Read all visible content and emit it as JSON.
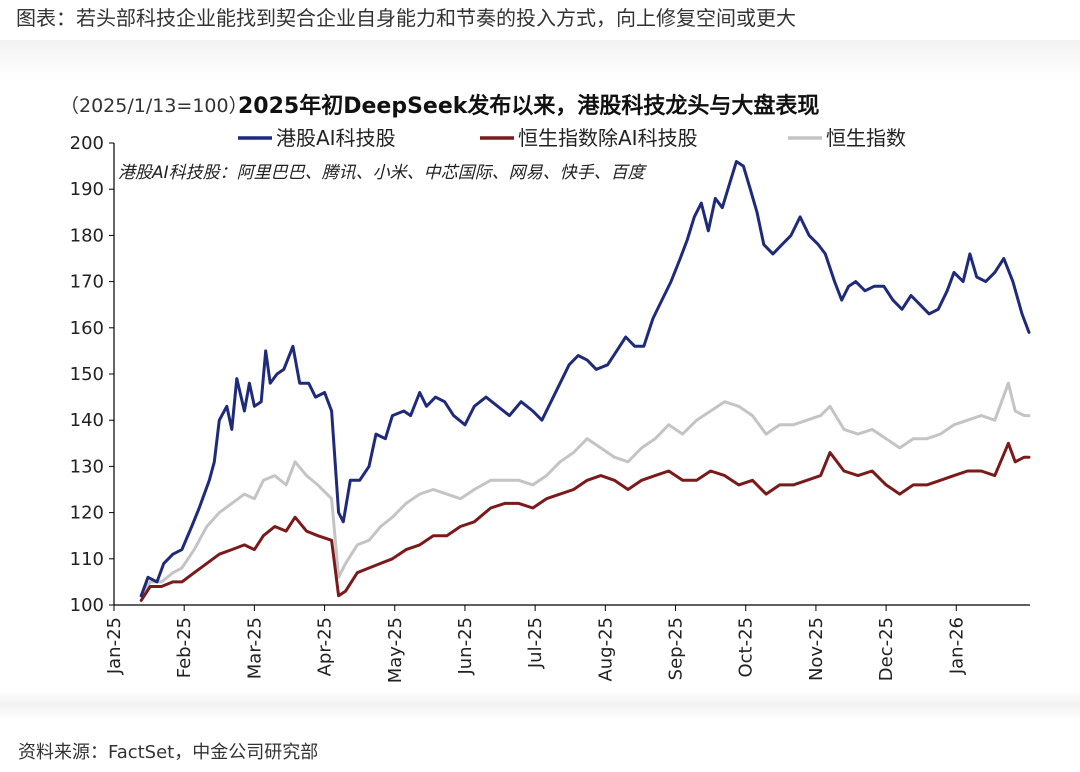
{
  "header": {
    "text": "图表：若头部科技企业能找到契合企业自身能力和节奏的投入方式，向上修复空间或更大"
  },
  "source": {
    "text": "资料来源：FactSet，中金公司研究部"
  },
  "chart_data": {
    "type": "line",
    "title_prefix": "（2025/1/13=100）",
    "title": "2025年初DeepSeek发布以来，港股科技龙头与大盘表现",
    "note": "港股AI科技股：阿里巴巴、腾讯、小米、中芯国际、网易、快手、百度",
    "ylim": [
      100,
      200
    ],
    "yticks": [
      100,
      110,
      120,
      130,
      140,
      150,
      160,
      170,
      180,
      190,
      200
    ],
    "xticks": [
      "Jan-25",
      "Feb-25",
      "Mar-25",
      "Apr-25",
      "May-25",
      "Jun-25",
      "Jul-25",
      "Aug-25",
      "Sep-25",
      "Oct-25",
      "Nov-25",
      "Dec-25",
      "Jan-26"
    ],
    "x_month_start": [
      2025,
      1
    ],
    "x_month_end": [
      2026,
      2.05
    ],
    "grid": false,
    "legend_position": "top",
    "series": [
      {
        "name": "港股AI科技股",
        "color": "#1f2a7a",
        "points": [
          [
            "2025-01-13",
            102
          ],
          [
            "2025-01-16",
            106
          ],
          [
            "2025-01-20",
            105
          ],
          [
            "2025-01-23",
            109
          ],
          [
            "2025-01-27",
            111
          ],
          [
            "2025-01-31",
            112
          ],
          [
            "2025-02-04",
            117
          ],
          [
            "2025-02-07",
            121
          ],
          [
            "2025-02-11",
            127
          ],
          [
            "2025-02-13",
            131
          ],
          [
            "2025-02-15",
            140
          ],
          [
            "2025-02-18",
            143
          ],
          [
            "2025-02-20",
            138
          ],
          [
            "2025-02-22",
            149
          ],
          [
            "2025-02-25",
            142
          ],
          [
            "2025-02-27",
            148
          ],
          [
            "2025-03-01",
            143
          ],
          [
            "2025-03-04",
            144
          ],
          [
            "2025-03-06",
            155
          ],
          [
            "2025-03-08",
            148
          ],
          [
            "2025-03-11",
            150
          ],
          [
            "2025-03-14",
            151
          ],
          [
            "2025-03-18",
            156
          ],
          [
            "2025-03-21",
            148
          ],
          [
            "2025-03-25",
            148
          ],
          [
            "2025-03-28",
            145
          ],
          [
            "2025-04-01",
            146
          ],
          [
            "2025-04-04",
            142
          ],
          [
            "2025-04-07",
            120
          ],
          [
            "2025-04-09",
            118
          ],
          [
            "2025-04-12",
            127
          ],
          [
            "2025-04-16",
            127
          ],
          [
            "2025-04-20",
            130
          ],
          [
            "2025-04-23",
            137
          ],
          [
            "2025-04-27",
            136
          ],
          [
            "2025-04-30",
            141
          ],
          [
            "2025-05-05",
            142
          ],
          [
            "2025-05-08",
            141
          ],
          [
            "2025-05-12",
            146
          ],
          [
            "2025-05-15",
            143
          ],
          [
            "2025-05-19",
            145
          ],
          [
            "2025-05-23",
            144
          ],
          [
            "2025-05-27",
            141
          ],
          [
            "2025-06-01",
            139
          ],
          [
            "2025-06-05",
            143
          ],
          [
            "2025-06-10",
            145
          ],
          [
            "2025-06-15",
            143
          ],
          [
            "2025-06-20",
            141
          ],
          [
            "2025-06-25",
            144
          ],
          [
            "2025-06-30",
            142
          ],
          [
            "2025-07-04",
            140
          ],
          [
            "2025-07-08",
            144
          ],
          [
            "2025-07-12",
            148
          ],
          [
            "2025-07-16",
            152
          ],
          [
            "2025-07-20",
            154
          ],
          [
            "2025-07-24",
            153
          ],
          [
            "2025-07-28",
            151
          ],
          [
            "2025-08-02",
            152
          ],
          [
            "2025-08-06",
            155
          ],
          [
            "2025-08-10",
            158
          ],
          [
            "2025-08-14",
            156
          ],
          [
            "2025-08-18",
            156
          ],
          [
            "2025-08-22",
            162
          ],
          [
            "2025-08-26",
            166
          ],
          [
            "2025-08-30",
            170
          ],
          [
            "2025-09-03",
            175
          ],
          [
            "2025-09-06",
            179
          ],
          [
            "2025-09-09",
            184
          ],
          [
            "2025-09-12",
            187
          ],
          [
            "2025-09-15",
            181
          ],
          [
            "2025-09-18",
            188
          ],
          [
            "2025-09-21",
            186
          ],
          [
            "2025-09-24",
            191
          ],
          [
            "2025-09-27",
            196
          ],
          [
            "2025-09-30",
            195
          ],
          [
            "2025-10-03",
            190
          ],
          [
            "2025-10-06",
            185
          ],
          [
            "2025-10-09",
            178
          ],
          [
            "2025-10-13",
            176
          ],
          [
            "2025-10-17",
            178
          ],
          [
            "2025-10-21",
            180
          ],
          [
            "2025-10-25",
            184
          ],
          [
            "2025-10-29",
            180
          ],
          [
            "2025-11-02",
            178
          ],
          [
            "2025-11-05",
            176
          ],
          [
            "2025-11-09",
            170
          ],
          [
            "2025-11-12",
            166
          ],
          [
            "2025-11-15",
            169
          ],
          [
            "2025-11-18",
            170
          ],
          [
            "2025-11-22",
            168
          ],
          [
            "2025-11-26",
            169
          ],
          [
            "2025-11-30",
            169
          ],
          [
            "2025-12-04",
            166
          ],
          [
            "2025-12-08",
            164
          ],
          [
            "2025-12-12",
            167
          ],
          [
            "2025-12-16",
            165
          ],
          [
            "2025-12-20",
            163
          ],
          [
            "2025-12-24",
            164
          ],
          [
            "2025-12-28",
            168
          ],
          [
            "2025-12-31",
            172
          ],
          [
            "2026-01-04",
            170
          ],
          [
            "2026-01-07",
            176
          ],
          [
            "2026-01-10",
            171
          ],
          [
            "2026-01-14",
            170
          ],
          [
            "2026-01-18",
            172
          ],
          [
            "2026-01-22",
            175
          ],
          [
            "2026-01-26",
            170
          ],
          [
            "2026-01-30",
            163
          ],
          [
            "2026-02-02",
            159
          ]
        ]
      },
      {
        "name": "恒生指数除AI科技股",
        "color": "#7a1a1a",
        "points": [
          [
            "2025-01-13",
            101
          ],
          [
            "2025-01-17",
            104
          ],
          [
            "2025-01-22",
            104
          ],
          [
            "2025-01-27",
            105
          ],
          [
            "2025-01-31",
            105
          ],
          [
            "2025-02-05",
            107
          ],
          [
            "2025-02-10",
            109
          ],
          [
            "2025-02-15",
            111
          ],
          [
            "2025-02-20",
            112
          ],
          [
            "2025-02-25",
            113
          ],
          [
            "2025-03-01",
            112
          ],
          [
            "2025-03-05",
            115
          ],
          [
            "2025-03-10",
            117
          ],
          [
            "2025-03-15",
            116
          ],
          [
            "2025-03-19",
            119
          ],
          [
            "2025-03-24",
            116
          ],
          [
            "2025-03-29",
            115
          ],
          [
            "2025-04-04",
            114
          ],
          [
            "2025-04-07",
            102
          ],
          [
            "2025-04-10",
            103
          ],
          [
            "2025-04-15",
            107
          ],
          [
            "2025-04-20",
            108
          ],
          [
            "2025-04-25",
            109
          ],
          [
            "2025-04-30",
            110
          ],
          [
            "2025-05-06",
            112
          ],
          [
            "2025-05-12",
            113
          ],
          [
            "2025-05-18",
            115
          ],
          [
            "2025-05-24",
            115
          ],
          [
            "2025-05-30",
            117
          ],
          [
            "2025-06-05",
            118
          ],
          [
            "2025-06-12",
            121
          ],
          [
            "2025-06-18",
            122
          ],
          [
            "2025-06-24",
            122
          ],
          [
            "2025-06-30",
            121
          ],
          [
            "2025-07-06",
            123
          ],
          [
            "2025-07-12",
            124
          ],
          [
            "2025-07-18",
            125
          ],
          [
            "2025-07-24",
            127
          ],
          [
            "2025-07-30",
            128
          ],
          [
            "2025-08-05",
            127
          ],
          [
            "2025-08-11",
            125
          ],
          [
            "2025-08-17",
            127
          ],
          [
            "2025-08-23",
            128
          ],
          [
            "2025-08-29",
            129
          ],
          [
            "2025-09-04",
            127
          ],
          [
            "2025-09-10",
            127
          ],
          [
            "2025-09-16",
            129
          ],
          [
            "2025-09-22",
            128
          ],
          [
            "2025-09-28",
            126
          ],
          [
            "2025-10-04",
            127
          ],
          [
            "2025-10-10",
            124
          ],
          [
            "2025-10-16",
            126
          ],
          [
            "2025-10-22",
            126
          ],
          [
            "2025-10-28",
            127
          ],
          [
            "2025-11-03",
            128
          ],
          [
            "2025-11-07",
            133
          ],
          [
            "2025-11-13",
            129
          ],
          [
            "2025-11-19",
            128
          ],
          [
            "2025-11-25",
            129
          ],
          [
            "2025-12-01",
            126
          ],
          [
            "2025-12-07",
            124
          ],
          [
            "2025-12-13",
            126
          ],
          [
            "2025-12-19",
            126
          ],
          [
            "2025-12-25",
            127
          ],
          [
            "2025-12-31",
            128
          ],
          [
            "2026-01-06",
            129
          ],
          [
            "2026-01-12",
            129
          ],
          [
            "2026-01-18",
            128
          ],
          [
            "2026-01-24",
            135
          ],
          [
            "2026-01-27",
            131
          ],
          [
            "2026-01-31",
            132
          ],
          [
            "2026-02-02",
            132
          ]
        ]
      },
      {
        "name": "恒生指数",
        "color": "#c4c4c4",
        "points": [
          [
            "2025-01-13",
            102
          ],
          [
            "2025-01-17",
            105
          ],
          [
            "2025-01-22",
            105
          ],
          [
            "2025-01-27",
            107
          ],
          [
            "2025-01-31",
            108
          ],
          [
            "2025-02-05",
            112
          ],
          [
            "2025-02-10",
            117
          ],
          [
            "2025-02-15",
            120
          ],
          [
            "2025-02-20",
            122
          ],
          [
            "2025-02-25",
            124
          ],
          [
            "2025-03-01",
            123
          ],
          [
            "2025-03-05",
            127
          ],
          [
            "2025-03-10",
            128
          ],
          [
            "2025-03-15",
            126
          ],
          [
            "2025-03-19",
            131
          ],
          [
            "2025-03-24",
            128
          ],
          [
            "2025-03-29",
            126
          ],
          [
            "2025-04-04",
            123
          ],
          [
            "2025-04-07",
            106
          ],
          [
            "2025-04-10",
            109
          ],
          [
            "2025-04-15",
            113
          ],
          [
            "2025-04-20",
            114
          ],
          [
            "2025-04-25",
            117
          ],
          [
            "2025-04-30",
            119
          ],
          [
            "2025-05-06",
            122
          ],
          [
            "2025-05-12",
            124
          ],
          [
            "2025-05-18",
            125
          ],
          [
            "2025-05-24",
            124
          ],
          [
            "2025-05-30",
            123
          ],
          [
            "2025-06-05",
            125
          ],
          [
            "2025-06-12",
            127
          ],
          [
            "2025-06-18",
            127
          ],
          [
            "2025-06-24",
            127
          ],
          [
            "2025-06-30",
            126
          ],
          [
            "2025-07-06",
            128
          ],
          [
            "2025-07-12",
            131
          ],
          [
            "2025-07-18",
            133
          ],
          [
            "2025-07-24",
            136
          ],
          [
            "2025-07-30",
            134
          ],
          [
            "2025-08-05",
            132
          ],
          [
            "2025-08-11",
            131
          ],
          [
            "2025-08-17",
            134
          ],
          [
            "2025-08-23",
            136
          ],
          [
            "2025-08-29",
            139
          ],
          [
            "2025-09-04",
            137
          ],
          [
            "2025-09-10",
            140
          ],
          [
            "2025-09-16",
            142
          ],
          [
            "2025-09-22",
            144
          ],
          [
            "2025-09-28",
            143
          ],
          [
            "2025-10-04",
            141
          ],
          [
            "2025-10-10",
            137
          ],
          [
            "2025-10-16",
            139
          ],
          [
            "2025-10-22",
            139
          ],
          [
            "2025-10-28",
            140
          ],
          [
            "2025-11-03",
            141
          ],
          [
            "2025-11-07",
            143
          ],
          [
            "2025-11-13",
            138
          ],
          [
            "2025-11-19",
            137
          ],
          [
            "2025-11-25",
            138
          ],
          [
            "2025-12-01",
            136
          ],
          [
            "2025-12-07",
            134
          ],
          [
            "2025-12-13",
            136
          ],
          [
            "2025-12-19",
            136
          ],
          [
            "2025-12-25",
            137
          ],
          [
            "2025-12-31",
            139
          ],
          [
            "2026-01-06",
            140
          ],
          [
            "2026-01-12",
            141
          ],
          [
            "2026-01-18",
            140
          ],
          [
            "2026-01-24",
            148
          ],
          [
            "2026-01-27",
            142
          ],
          [
            "2026-01-31",
            141
          ],
          [
            "2026-02-02",
            141
          ]
        ]
      }
    ]
  }
}
